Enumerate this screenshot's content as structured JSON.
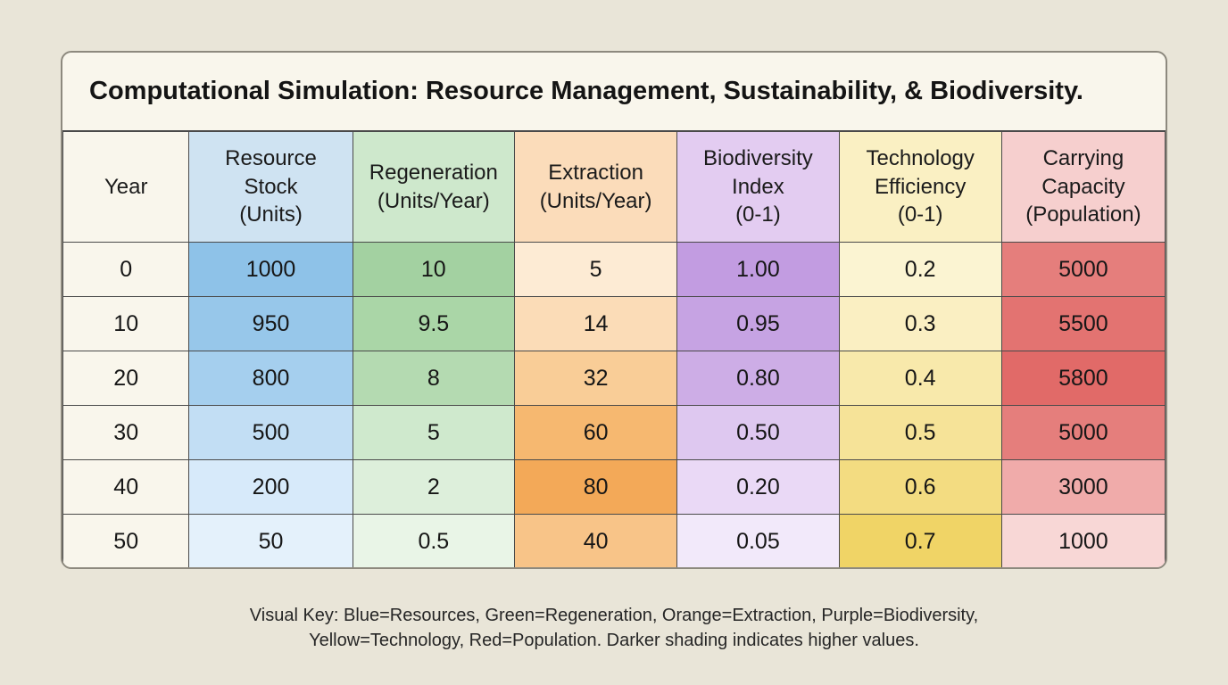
{
  "title": "Computational Simulation: Resource Management, Sustainability, & Biodiversity.",
  "table": {
    "headers": [
      {
        "label": "Year",
        "bg": "#f9f6ec"
      },
      {
        "label": "Resource\nStock\n(Units)",
        "bg": "#cfe3f2"
      },
      {
        "label": "Regeneration\n(Units/Year)",
        "bg": "#cee8cc"
      },
      {
        "label": "Extraction\n(Units/Year)",
        "bg": "#fbdcba"
      },
      {
        "label": "Biodiversity\nIndex\n(0-1)",
        "bg": "#e3ccf1"
      },
      {
        "label": "Technology\nEfficiency\n(0-1)",
        "bg": "#faf0c3"
      },
      {
        "label": "Carrying\nCapacity\n(Population)",
        "bg": "#f6cfce"
      }
    ],
    "rows": [
      {
        "year": "0",
        "cells": [
          {
            "value": "1000",
            "bg": "#8ec2e8"
          },
          {
            "value": "10",
            "bg": "#a3d1a1"
          },
          {
            "value": "5",
            "bg": "#fdebd4"
          },
          {
            "value": "1.00",
            "bg": "#c29ce1"
          },
          {
            "value": "0.2",
            "bg": "#fbf4d2"
          },
          {
            "value": "5000",
            "bg": "#e57e7c"
          }
        ]
      },
      {
        "year": "10",
        "cells": [
          {
            "value": "950",
            "bg": "#97c7ea"
          },
          {
            "value": "9.5",
            "bg": "#aad6a7"
          },
          {
            "value": "14",
            "bg": "#fbdcb7"
          },
          {
            "value": "0.95",
            "bg": "#c6a3e3"
          },
          {
            "value": "0.3",
            "bg": "#faefc2"
          },
          {
            "value": "5500",
            "bg": "#e37371"
          }
        ]
      },
      {
        "year": "20",
        "cells": [
          {
            "value": "800",
            "bg": "#a5cfee"
          },
          {
            "value": "8",
            "bg": "#b4dab1"
          },
          {
            "value": "32",
            "bg": "#f9cd97"
          },
          {
            "value": "0.80",
            "bg": "#cdade6"
          },
          {
            "value": "0.4",
            "bg": "#f8e9ab"
          },
          {
            "value": "5800",
            "bg": "#e16a68"
          }
        ]
      },
      {
        "year": "30",
        "cells": [
          {
            "value": "500",
            "bg": "#c2def4"
          },
          {
            "value": "5",
            "bg": "#cfe9cd"
          },
          {
            "value": "60",
            "bg": "#f6b870"
          },
          {
            "value": "0.50",
            "bg": "#dec8f0"
          },
          {
            "value": "0.5",
            "bg": "#f6e398"
          },
          {
            "value": "5000",
            "bg": "#e57e7c"
          }
        ]
      },
      {
        "year": "40",
        "cells": [
          {
            "value": "200",
            "bg": "#d7eafa"
          },
          {
            "value": "2",
            "bg": "#ddefdb"
          },
          {
            "value": "80",
            "bg": "#f3a958"
          },
          {
            "value": "0.20",
            "bg": "#ead9f6"
          },
          {
            "value": "0.6",
            "bg": "#f3dc81"
          },
          {
            "value": "3000",
            "bg": "#f0abaa"
          }
        ]
      },
      {
        "year": "50",
        "cells": [
          {
            "value": "50",
            "bg": "#e4f1fb"
          },
          {
            "value": "0.5",
            "bg": "#e9f5e7"
          },
          {
            "value": "40",
            "bg": "#f8c488"
          },
          {
            "value": "0.05",
            "bg": "#f2e9fa"
          },
          {
            "value": "0.7",
            "bg": "#f0d466"
          },
          {
            "value": "1000",
            "bg": "#f8d7d6"
          }
        ]
      }
    ]
  },
  "footer": {
    "line1": "Visual Key: Blue=Resources, Green=Regeneration, Orange=Extraction, Purple=Biodiversity,",
    "line2": "Yellow=Technology, Red=Population. Darker shading indicates higher values."
  },
  "chart_data": {
    "type": "table",
    "title": "Computational Simulation: Resource Management, Sustainability, & Biodiversity.",
    "columns": [
      "Year",
      "Resource Stock (Units)",
      "Regeneration (Units/Year)",
      "Extraction (Units/Year)",
      "Biodiversity Index (0-1)",
      "Technology Efficiency (0-1)",
      "Carrying Capacity (Population)"
    ],
    "rows": [
      [
        0,
        1000,
        10,
        5,
        1.0,
        0.2,
        5000
      ],
      [
        10,
        950,
        9.5,
        14,
        0.95,
        0.3,
        5500
      ],
      [
        20,
        800,
        8,
        32,
        0.8,
        0.4,
        5800
      ],
      [
        30,
        500,
        5,
        60,
        0.5,
        0.5,
        5000
      ],
      [
        40,
        200,
        2,
        80,
        0.2,
        0.6,
        3000
      ],
      [
        50,
        50,
        0.5,
        40,
        0.05,
        0.7,
        1000
      ]
    ],
    "color_legend": {
      "blue": "Resources",
      "green": "Regeneration",
      "orange": "Extraction",
      "purple": "Biodiversity",
      "yellow": "Technology",
      "red": "Population"
    },
    "note": "Darker shading indicates higher values."
  }
}
